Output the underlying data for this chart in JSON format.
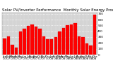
{
  "title": "Solar PV/Inverter Performance  Monthly Solar Energy Production",
  "bar_color": "#ff0000",
  "bar_edge_color": "#cc0000",
  "background_color": "#ffffff",
  "plot_bg_color": "#d4d4d4",
  "grid_color": "#ffffff",
  "categories": [
    "Jan",
    "Feb",
    "Mar",
    "Apr",
    "May",
    "Jun",
    "Jul",
    "Aug",
    "Sep",
    "Oct",
    "Nov",
    "Dec",
    "Jan",
    "Feb",
    "Mar",
    "Apr",
    "May",
    "Jun",
    "Jul",
    "Aug",
    "Sep",
    "Oct",
    "Nov",
    "Dec"
  ],
  "year_labels": [
    "'07",
    "'07",
    "'07",
    "'07",
    "'07",
    "'07",
    "'07",
    "'07",
    "'07",
    "'07",
    "'07",
    "'07",
    "'08",
    "'08",
    "'08",
    "'08",
    "'08",
    "'08",
    "'08",
    "'08",
    "'08",
    "'08",
    "'08",
    "'08"
  ],
  "values": [
    280,
    310,
    170,
    120,
    390,
    440,
    490,
    510,
    480,
    440,
    310,
    260,
    270,
    300,
    390,
    460,
    500,
    520,
    540,
    310,
    300,
    190,
    160,
    680
  ],
  "yticks": [
    0,
    100,
    200,
    300,
    400,
    500,
    600,
    700
  ],
  "ylim": [
    0,
    720
  ],
  "title_fontsize": 4.0,
  "tick_fontsize": 3.0,
  "legend_color1": "#ff0000",
  "legend_label1": "kWh"
}
